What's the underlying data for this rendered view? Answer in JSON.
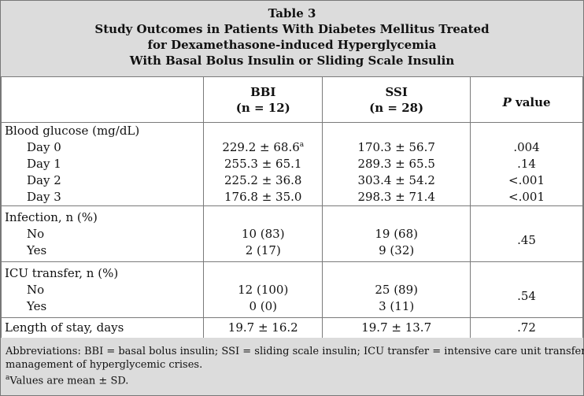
{
  "table": {
    "number": "Table 3",
    "title_lines": [
      "Study Outcomes in Patients With Diabetes Mellitus Treated",
      "for Dexamethasone-induced Hyperglycemia",
      "With Basal Bolus Insulin or Sliding Scale Insulin"
    ],
    "columns": {
      "bbi": "BBI",
      "bbi_n": "(n = 12)",
      "ssi": "SSI",
      "ssi_n": "(n = 28)",
      "p_italic": "P",
      "p_rest": " value"
    },
    "blood_glucose": {
      "label": "Blood glucose (mg/dL)",
      "rows": [
        {
          "label": "Day 0",
          "bbi": "229.2 ± 68.6",
          "bbi_sup": "a",
          "ssi": "170.3 ± 56.7",
          "p": ".004"
        },
        {
          "label": "Day 1",
          "bbi": "255.3 ± 65.1",
          "bbi_sup": "",
          "ssi": "289.3 ± 65.5",
          "p": ".14"
        },
        {
          "label": "Day 2",
          "bbi": "225.2 ± 36.8",
          "bbi_sup": "",
          "ssi": "303.4 ± 54.2",
          "p": "<.001"
        },
        {
          "label": "Day 3",
          "bbi": "176.8 ± 35.0",
          "bbi_sup": "",
          "ssi": "298.3 ± 71.4",
          "p": "<.001"
        }
      ]
    },
    "infection": {
      "label": "Infection, n (%)",
      "no_label": "No",
      "no_bbi": "10 (83)",
      "no_ssi": "19 (68)",
      "yes_label": "Yes",
      "yes_bbi": "2 (17)",
      "yes_ssi": "9 (32)",
      "p": ".45"
    },
    "icu": {
      "label": "ICU transfer, n (%)",
      "no_label": "No",
      "no_bbi": "12 (100)",
      "no_ssi": "25 (89)",
      "yes_label": "Yes",
      "yes_bbi": "0 (0)",
      "yes_ssi": "3 (11)",
      "p": ".54"
    },
    "los": {
      "label": "Length of stay, days",
      "bbi": "19.7 ± 16.2",
      "ssi": "19.7 ± 13.7",
      "p": ".72"
    },
    "footnotes": {
      "abbrev_line1": "Abbreviations: BBI = basal bolus insulin; SSI = sliding scale insulin; ICU transfer = intensive care unit transfer for",
      "abbrev_line2": "management of hyperglycemic crises.",
      "note_marker": "a",
      "note_text": "Values are mean ± SD."
    }
  }
}
